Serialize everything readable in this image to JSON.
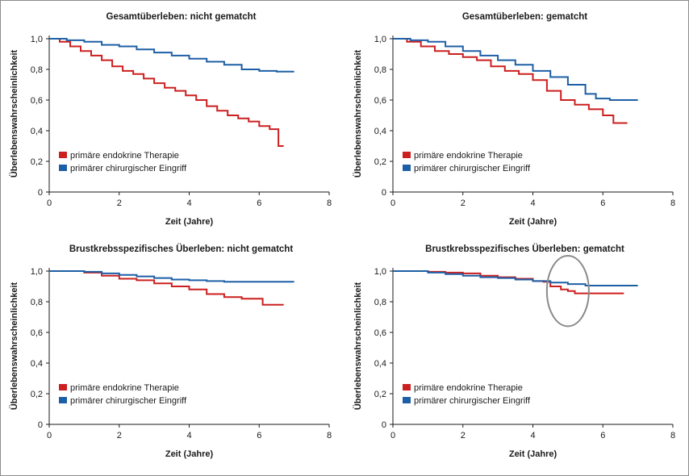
{
  "figure": {
    "colors": {
      "endocrine": "#cc1f1f",
      "surgery": "#1d5fa6",
      "axis": "#1a1a1a",
      "highlight": "#8a8a8a"
    }
  },
  "chart_data": [
    {
      "type": "line",
      "title": "Gesamtüberleben: nicht gematcht",
      "xlabel": "Zeit (Jahre)",
      "ylabel": "Überlebenswahrscheinlichkeit",
      "xlim": [
        0,
        8
      ],
      "ylim": [
        0,
        1
      ],
      "xticks": [
        "0",
        "2",
        "4",
        "6",
        "8"
      ],
      "yticks": [
        "0",
        "0,2",
        "0,4",
        "0,6",
        "0,8",
        "1,0"
      ],
      "legend_position": "bottom-left",
      "series": [
        {
          "name": "primäre endokrine Therapie",
          "color": "#cc1f1f",
          "x": [
            0,
            0.3,
            0.6,
            0.9,
            1.2,
            1.5,
            1.8,
            2.1,
            2.4,
            2.7,
            3.0,
            3.3,
            3.6,
            3.9,
            4.2,
            4.5,
            4.8,
            5.1,
            5.4,
            5.7,
            6.0,
            6.3,
            6.55,
            6.55,
            6.7
          ],
          "y": [
            1.0,
            0.98,
            0.95,
            0.92,
            0.89,
            0.86,
            0.82,
            0.79,
            0.77,
            0.74,
            0.71,
            0.68,
            0.66,
            0.63,
            0.6,
            0.56,
            0.53,
            0.5,
            0.48,
            0.46,
            0.43,
            0.41,
            0.4,
            0.3,
            0.3
          ]
        },
        {
          "name": "primärer chirurgischer Eingriff",
          "color": "#1d5fa6",
          "x": [
            0,
            0.5,
            1.0,
            1.5,
            2.0,
            2.5,
            3.0,
            3.5,
            4.0,
            4.5,
            5.0,
            5.5,
            6.0,
            6.5,
            7.0
          ],
          "y": [
            1.0,
            0.99,
            0.98,
            0.96,
            0.95,
            0.93,
            0.91,
            0.89,
            0.87,
            0.85,
            0.83,
            0.8,
            0.79,
            0.785,
            0.785
          ]
        }
      ]
    },
    {
      "type": "line",
      "title": "Gesamtüberleben: gematcht",
      "xlabel": "Zeit (Jahre)",
      "ylabel": "Überlebenswahrscheinlichkeit",
      "xlim": [
        0,
        8
      ],
      "ylim": [
        0,
        1
      ],
      "xticks": [
        "0",
        "2",
        "4",
        "6",
        "8"
      ],
      "yticks": [
        "0",
        "0,2",
        "0,4",
        "0,6",
        "0,8",
        "1,0"
      ],
      "legend_position": "bottom-left",
      "series": [
        {
          "name": "primäre endokrine Therapie",
          "color": "#cc1f1f",
          "x": [
            0,
            0.4,
            0.8,
            1.2,
            1.6,
            2.0,
            2.4,
            2.8,
            3.2,
            3.6,
            4.0,
            4.4,
            4.8,
            5.2,
            5.6,
            6.0,
            6.3,
            6.7
          ],
          "y": [
            1.0,
            0.98,
            0.95,
            0.92,
            0.9,
            0.88,
            0.86,
            0.82,
            0.79,
            0.77,
            0.73,
            0.66,
            0.6,
            0.57,
            0.54,
            0.5,
            0.45,
            0.45
          ]
        },
        {
          "name": "primärer chirurgischer Eingriff",
          "color": "#1d5fa6",
          "x": [
            0,
            0.5,
            1.0,
            1.5,
            2.0,
            2.5,
            3.0,
            3.5,
            4.0,
            4.5,
            5.0,
            5.5,
            5.8,
            6.2,
            6.6,
            7.0
          ],
          "y": [
            1.0,
            0.99,
            0.98,
            0.95,
            0.92,
            0.89,
            0.86,
            0.83,
            0.79,
            0.75,
            0.7,
            0.64,
            0.61,
            0.6,
            0.6,
            0.6
          ]
        }
      ]
    },
    {
      "type": "line",
      "title": "Brustkrebsspezifisches Überleben: nicht gematcht",
      "xlabel": "Zeit (Jahre)",
      "ylabel": "Überlebenswahrscheinlichkeit",
      "xlim": [
        0,
        8
      ],
      "ylim": [
        0,
        1
      ],
      "xticks": [
        "0",
        "2",
        "4",
        "6",
        "8"
      ],
      "yticks": [
        "0",
        "0,2",
        "0,4",
        "0,6",
        "0,8",
        "1,0"
      ],
      "legend_position": "bottom-left",
      "series": [
        {
          "name": "primäre endokrine Therapie",
          "color": "#cc1f1f",
          "x": [
            0,
            0.5,
            1.0,
            1.5,
            2.0,
            2.5,
            3.0,
            3.5,
            4.0,
            4.5,
            5.0,
            5.5,
            6.0,
            6.1,
            6.7
          ],
          "y": [
            1.0,
            1.0,
            0.99,
            0.97,
            0.95,
            0.94,
            0.92,
            0.9,
            0.88,
            0.85,
            0.83,
            0.82,
            0.82,
            0.78,
            0.78
          ]
        },
        {
          "name": "primärer chirurgischer Eingriff",
          "color": "#1d5fa6",
          "x": [
            0,
            0.5,
            1.0,
            1.5,
            2.0,
            2.5,
            3.0,
            3.5,
            4.0,
            4.5,
            5.0,
            5.5,
            6.0,
            6.5,
            7.0
          ],
          "y": [
            1.0,
            1.0,
            0.995,
            0.985,
            0.975,
            0.965,
            0.955,
            0.945,
            0.94,
            0.935,
            0.93,
            0.93,
            0.93,
            0.93,
            0.93
          ]
        }
      ]
    },
    {
      "type": "line",
      "title": "Brustkrebsspezifisches Überleben: gematcht",
      "xlabel": "Zeit (Jahre)",
      "ylabel": "Überlebenswahrscheinlichkeit",
      "xlim": [
        0,
        8
      ],
      "ylim": [
        0,
        1
      ],
      "xticks": [
        "0",
        "2",
        "4",
        "6",
        "8"
      ],
      "yticks": [
        "0",
        "0,2",
        "0,4",
        "0,6",
        "0,8",
        "1,0"
      ],
      "legend_position": "bottom-left",
      "highlight_circle": {
        "center": [
          5.0,
          0.87
        ],
        "rx": 1.2,
        "ry": 0.23
      },
      "series": [
        {
          "name": "primäre endokrine Therapie",
          "color": "#cc1f1f",
          "x": [
            0,
            0.5,
            1.0,
            1.5,
            2.0,
            2.5,
            3.0,
            3.5,
            4.0,
            4.3,
            4.5,
            4.8,
            5.0,
            5.2,
            5.6,
            6.0,
            6.6
          ],
          "y": [
            1.0,
            1.0,
            0.995,
            0.99,
            0.985,
            0.97,
            0.96,
            0.95,
            0.935,
            0.93,
            0.9,
            0.88,
            0.87,
            0.855,
            0.855,
            0.855,
            0.855
          ]
        },
        {
          "name": "primärer chirurgischer Eingriff",
          "color": "#1d5fa6",
          "x": [
            0,
            0.5,
            1.0,
            1.5,
            2.0,
            2.5,
            3.0,
            3.5,
            4.0,
            4.5,
            5.0,
            5.5,
            6.0,
            6.5,
            7.0
          ],
          "y": [
            1.0,
            1.0,
            0.99,
            0.98,
            0.97,
            0.96,
            0.955,
            0.945,
            0.935,
            0.925,
            0.915,
            0.905,
            0.905,
            0.905,
            0.905
          ]
        }
      ]
    }
  ]
}
